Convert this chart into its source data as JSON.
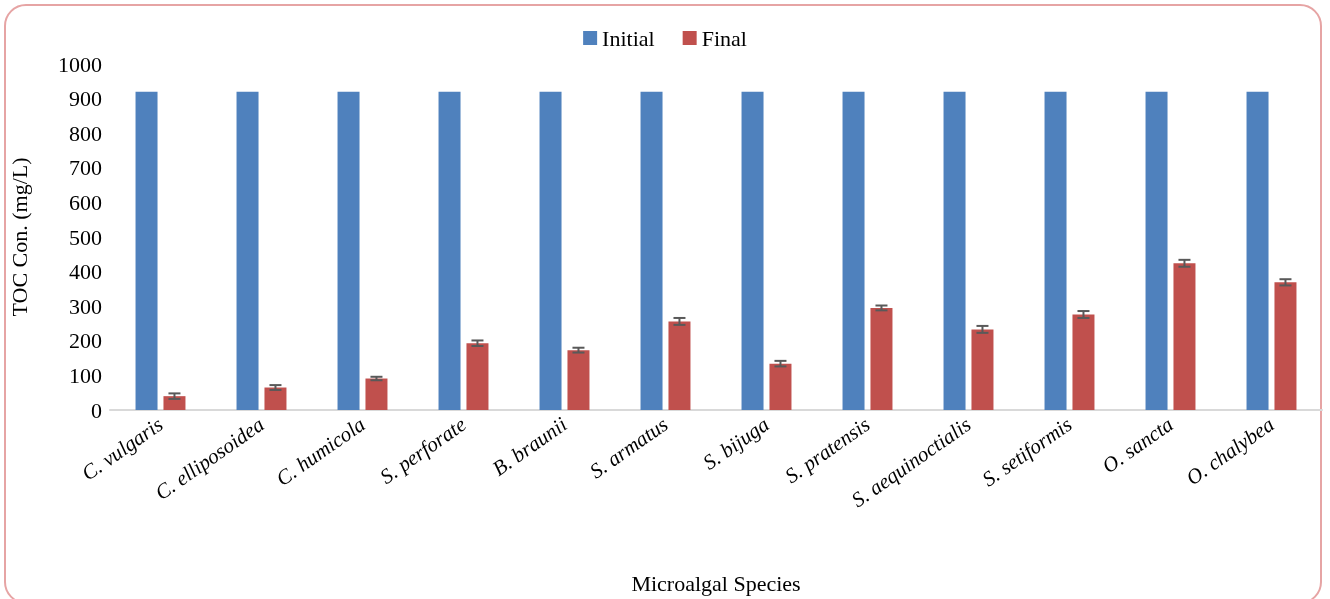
{
  "chart_data": {
    "type": "bar",
    "xlabel": "Microalgal Species",
    "ylabel": "TOC Con. (mg/L)",
    "categories": [
      "C. vulgaris",
      "C. elliposoidea",
      "C. humicola",
      "S. perforate",
      "B. braunii",
      "S. armatus",
      "S. bijuga",
      "S. pratensis",
      "S. aequinoctialis",
      "S. setiformis",
      "O. sancta",
      "O. chalybea"
    ],
    "series": [
      {
        "name": "Initial",
        "color": "#4f81bd",
        "values": [
          920,
          920,
          920,
          920,
          920,
          920,
          920,
          920,
          920,
          920,
          920,
          920
        ]
      },
      {
        "name": "Final",
        "color": "#c0504d",
        "values": [
          40,
          65,
          91,
          193,
          173,
          256,
          134,
          295,
          233,
          276,
          424,
          369
        ],
        "errors": [
          8,
          7,
          5,
          8,
          7,
          10,
          8,
          7,
          10,
          10,
          10,
          9
        ]
      }
    ],
    "ylim": [
      0,
      1000
    ],
    "yticks": [
      0,
      100,
      200,
      300,
      400,
      500,
      600,
      700,
      800,
      900,
      1000
    ],
    "grid": false,
    "legend": "top"
  }
}
